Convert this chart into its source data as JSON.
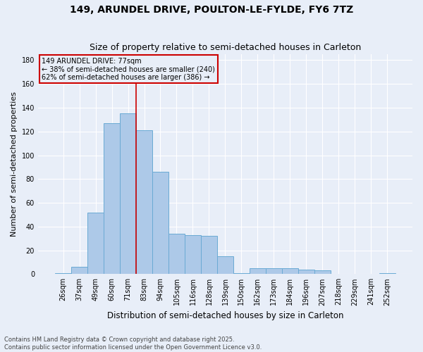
{
  "title1": "149, ARUNDEL DRIVE, POULTON-LE-FYLDE, FY6 7TZ",
  "title2": "Size of property relative to semi-detached houses in Carleton",
  "xlabel": "Distribution of semi-detached houses by size in Carleton",
  "ylabel": "Number of semi-detached properties",
  "categories": [
    "26sqm",
    "37sqm",
    "49sqm",
    "60sqm",
    "71sqm",
    "83sqm",
    "94sqm",
    "105sqm",
    "116sqm",
    "128sqm",
    "139sqm",
    "150sqm",
    "162sqm",
    "173sqm",
    "184sqm",
    "196sqm",
    "207sqm",
    "218sqm",
    "229sqm",
    "241sqm",
    "252sqm"
  ],
  "values": [
    1,
    6,
    52,
    127,
    135,
    121,
    86,
    34,
    33,
    32,
    15,
    1,
    5,
    5,
    5,
    4,
    3,
    0,
    0,
    0,
    1
  ],
  "bar_color": "#adc9e8",
  "bar_edge_color": "#6aaad4",
  "vline_index": 4.5,
  "vline_color": "#cc0000",
  "annotation_text": "149 ARUNDEL DRIVE: 77sqm\n← 38% of semi-detached houses are smaller (240)\n62% of semi-detached houses are larger (386) →",
  "annotation_box_color": "#cc0000",
  "ylim": [
    0,
    185
  ],
  "yticks": [
    0,
    20,
    40,
    60,
    80,
    100,
    120,
    140,
    160,
    180
  ],
  "footer1": "Contains HM Land Registry data © Crown copyright and database right 2025.",
  "footer2": "Contains public sector information licensed under the Open Government Licence v3.0.",
  "bg_color": "#e8eef8",
  "grid_color": "#ffffff",
  "title_fontsize": 10,
  "subtitle_fontsize": 9,
  "tick_fontsize": 7,
  "ylabel_fontsize": 8,
  "xlabel_fontsize": 8.5,
  "footer_fontsize": 6
}
